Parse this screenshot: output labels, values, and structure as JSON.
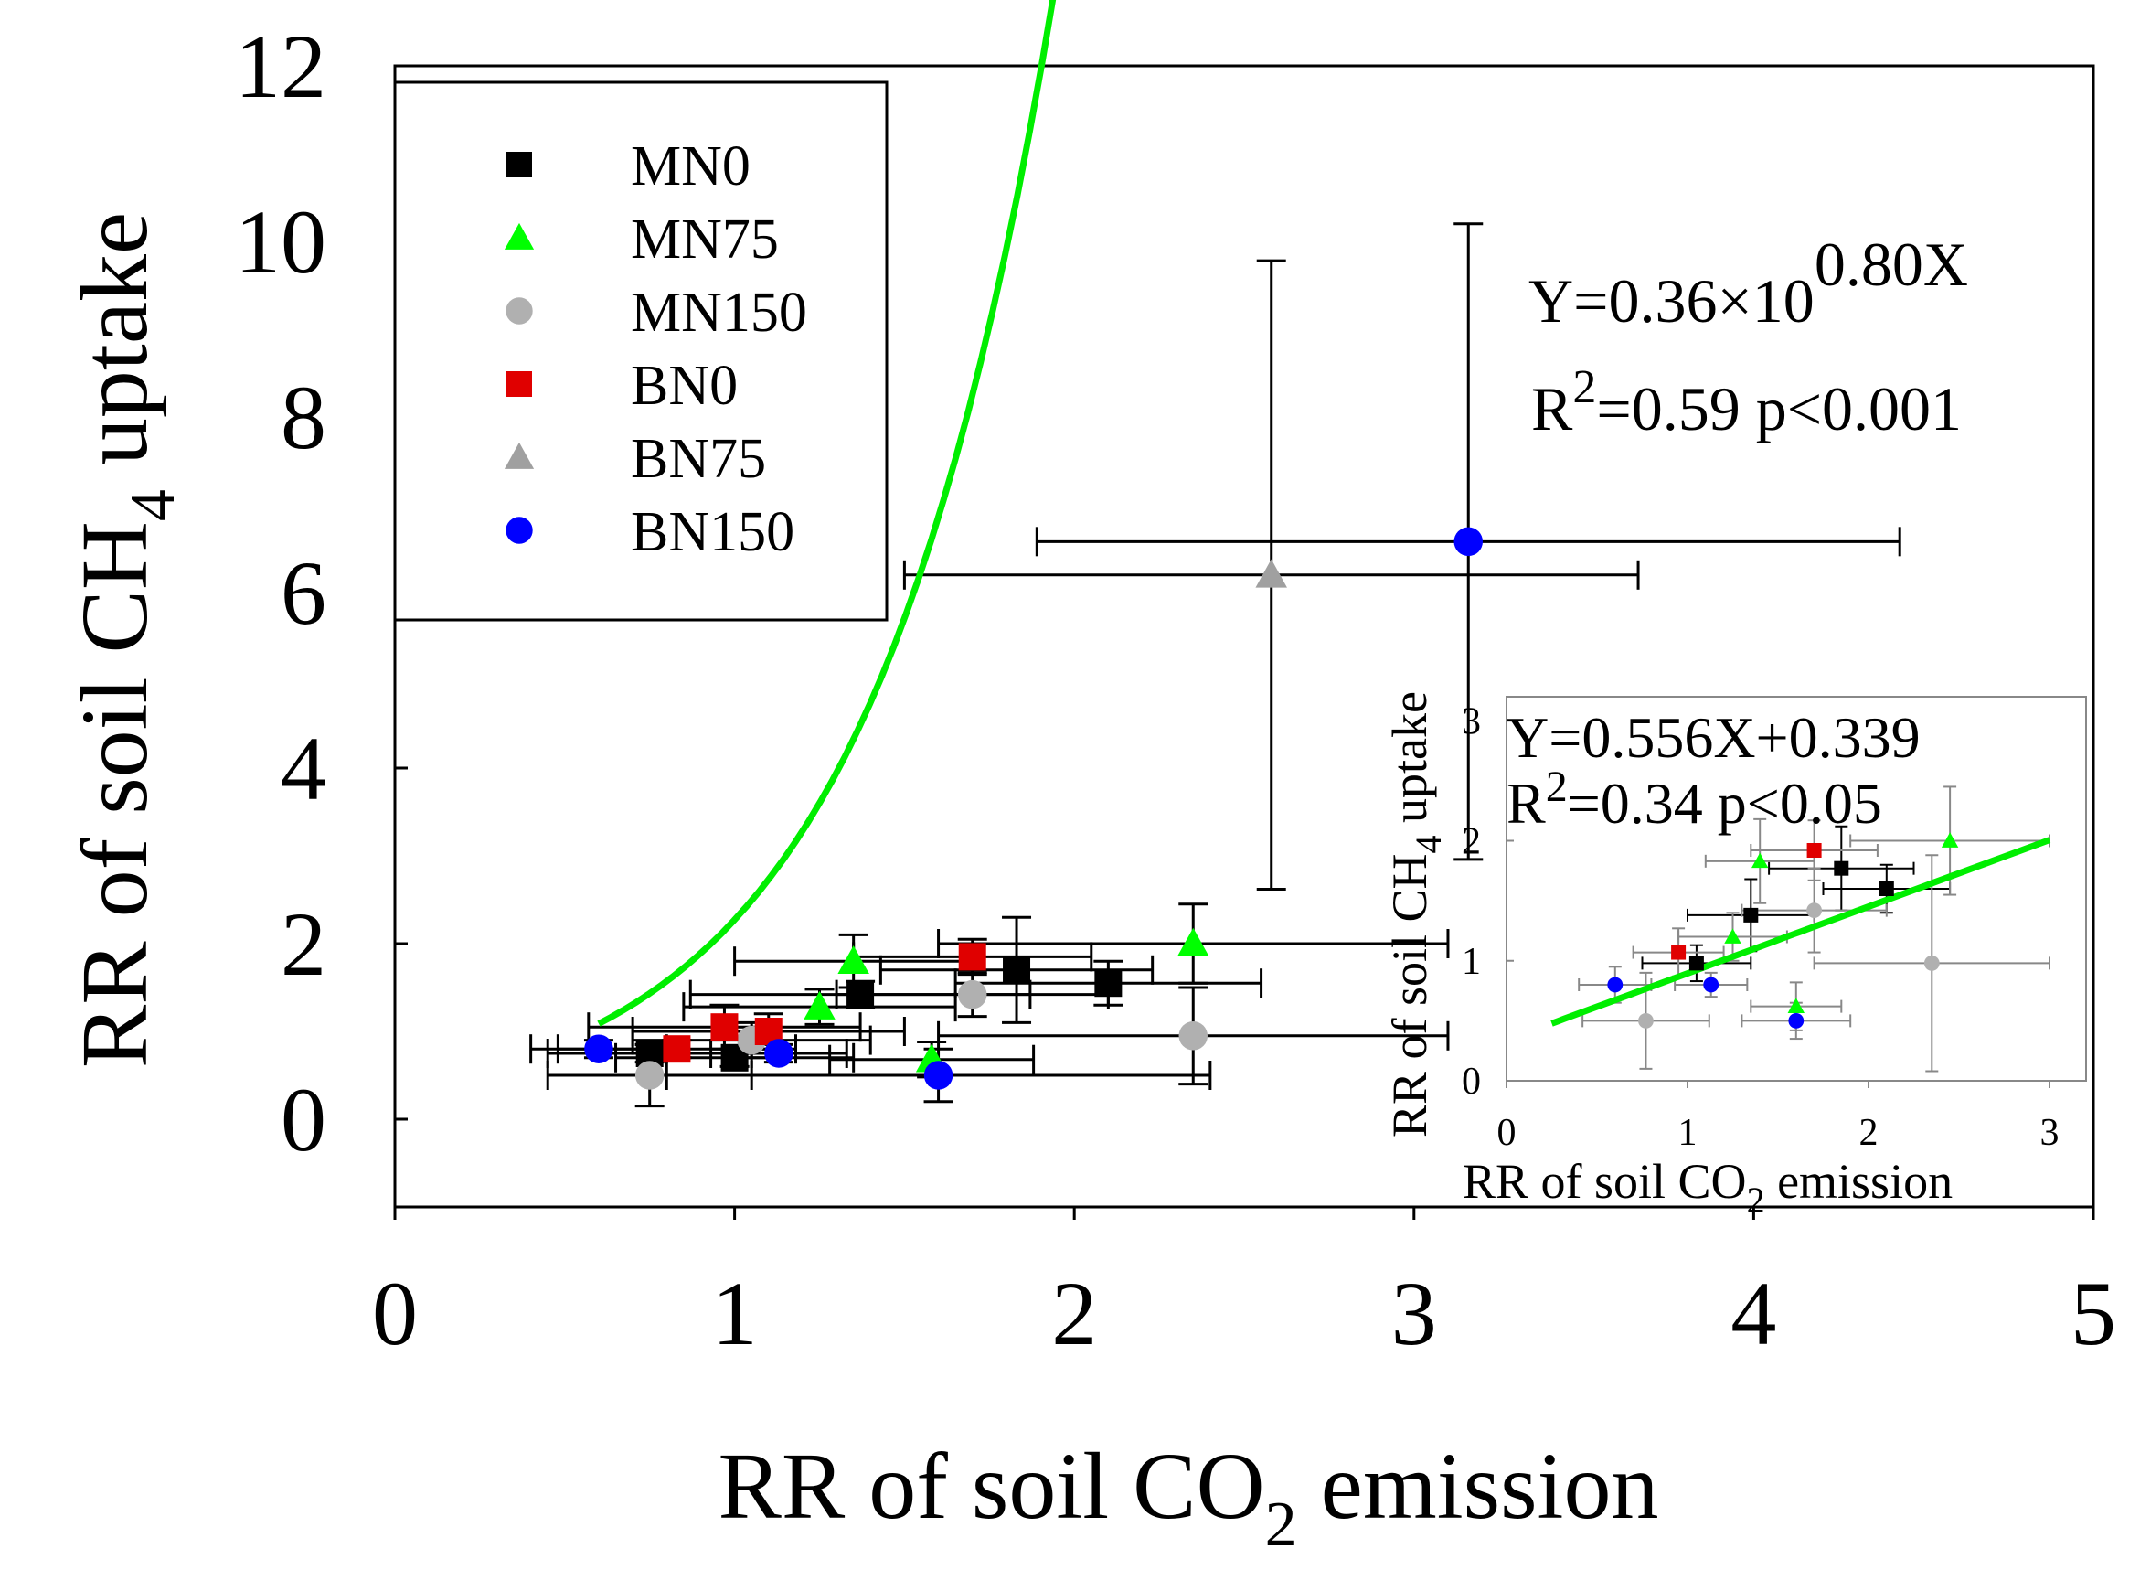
{
  "chart_data": [
    {
      "type": "scatter",
      "xlabel": "RR of  soil CO2 emission",
      "xlabel_parts": {
        "pre": "RR of  soil CO",
        "sub": "2",
        "post": " emission"
      },
      "ylabel": "RR of soil CH4 uptake",
      "ylabel_parts": {
        "pre": "RR of soil CH",
        "sub": "4",
        "post": " uptake"
      },
      "xlim": [
        0,
        5
      ],
      "ylim": [
        -1,
        12
      ],
      "xticks": [
        "0",
        "1",
        "2",
        "3",
        "4",
        "5"
      ],
      "yticks": [
        "0",
        "2",
        "4",
        "6",
        "8",
        "10",
        "12"
      ],
      "legend_position": "top-left",
      "series": [
        {
          "name": "MN0",
          "marker": "square",
          "color": "#000000",
          "points": [
            {
              "x": 0.75,
              "y": 0.75,
              "xerr": 0.3,
              "yerr": 0.1
            },
            {
              "x": 1.0,
              "y": 0.7,
              "xerr": 0.35,
              "yerr": 0.1
            },
            {
              "x": 1.37,
              "y": 1.42,
              "xerr": 0.5,
              "yerr": 0.15
            },
            {
              "x": 1.83,
              "y": 1.7,
              "xerr": 0.4,
              "yerr": 0.6
            },
            {
              "x": 2.1,
              "y": 1.55,
              "xerr": 0.45,
              "yerr": 0.25
            }
          ]
        },
        {
          "name": "MN75",
          "marker": "triangle",
          "color": "#00ff00",
          "points": [
            {
              "x": 1.25,
              "y": 1.28,
              "xerr": 0.4,
              "yerr": 0.2
            },
            {
              "x": 1.35,
              "y": 1.8,
              "xerr": 0.35,
              "yerr": 0.3
            },
            {
              "x": 2.35,
              "y": 2.0,
              "xerr": 0.75,
              "yerr": 0.45
            },
            {
              "x": 1.58,
              "y": 0.68,
              "xerr": 0.3,
              "yerr": 0.2
            }
          ]
        },
        {
          "name": "MN150",
          "marker": "circle",
          "color": "#b0b0b0",
          "points": [
            {
              "x": 0.75,
              "y": 0.5,
              "xerr": 0.3,
              "yerr": 0.35
            },
            {
              "x": 1.05,
              "y": 0.9,
              "xerr": 0.35,
              "yerr": 0.2
            },
            {
              "x": 1.7,
              "y": 1.42,
              "xerr": 0.4,
              "yerr": 0.25
            },
            {
              "x": 2.35,
              "y": 0.95,
              "xerr": 0.75,
              "yerr": 0.55
            }
          ]
        },
        {
          "name": "BN0",
          "marker": "square",
          "color": "#e00000",
          "points": [
            {
              "x": 0.83,
              "y": 0.8,
              "xerr": 0.35,
              "yerr": 0.1
            },
            {
              "x": 0.97,
              "y": 1.05,
              "xerr": 0.4,
              "yerr": 0.25
            },
            {
              "x": 1.1,
              "y": 1.0,
              "xerr": 0.4,
              "yerr": 0.2
            },
            {
              "x": 1.7,
              "y": 1.85,
              "xerr": 0.35,
              "yerr": 0.2
            }
          ]
        },
        {
          "name": "BN75",
          "marker": "triangle",
          "color": "#a0a0a0",
          "points": [
            {
              "x": 2.58,
              "y": 6.2,
              "xerr": 1.08,
              "yerr": 3.58
            }
          ]
        },
        {
          "name": "BN150",
          "marker": "circle",
          "color": "#0000ff",
          "points": [
            {
              "x": 0.6,
              "y": 0.8,
              "xerr": 0.2,
              "yerr": 0.1
            },
            {
              "x": 1.13,
              "y": 0.75,
              "xerr": 0.2,
              "yerr": 0.1
            },
            {
              "x": 1.6,
              "y": 0.5,
              "xerr": 0.8,
              "yerr": 0.3
            },
            {
              "x": 3.16,
              "y": 6.58,
              "xerr": 1.27,
              "yerr": 3.62
            }
          ]
        }
      ],
      "fit": {
        "type": "exponential",
        "a": 0.36,
        "b": 0.8,
        "x_range": [
          0.6,
          3.5
        ],
        "color": "#00ee00"
      },
      "annotations": {
        "equation_pre": "Y=0.36×10",
        "equation_sup": "0.80X",
        "r2_pre": "R",
        "r2_sup": "2",
        "r2_post": "=0.59 p<0.001"
      }
    },
    {
      "type": "scatter",
      "role": "inset",
      "xlabel": "RR of  soil CO2 emission",
      "xlabel_parts": {
        "pre": "RR of  soil CO",
        "sub": "2",
        "post": " emission"
      },
      "ylabel": "RR of soil CH4 uptake",
      "ylabel_parts": {
        "pre": "RR of soil CH",
        "sub": "4",
        "post": " uptake"
      },
      "xlim": [
        0,
        3
      ],
      "ylim": [
        0,
        3.2
      ],
      "xticks": [
        "0",
        "1",
        "2",
        "3"
      ],
      "yticks": [
        "0",
        "1",
        "2",
        "3"
      ],
      "series": [
        {
          "name": "MN0",
          "marker": "square",
          "color": "#000000",
          "points": [
            {
              "x": 1.35,
              "y": 1.38,
              "xerr": 0.35,
              "yerr": 0.3
            },
            {
              "x": 1.85,
              "y": 1.77,
              "xerr": 0.4,
              "yerr": 0.35
            },
            {
              "x": 2.1,
              "y": 1.6,
              "xerr": 0.35,
              "yerr": 0.2
            },
            {
              "x": 1.05,
              "y": 0.98,
              "xerr": 0.3,
              "yerr": 0.15
            }
          ]
        },
        {
          "name": "MN75",
          "marker": "triangle",
          "color": "#00ff00",
          "points": [
            {
              "x": 1.4,
              "y": 1.83,
              "xerr": 0.3,
              "yerr": 0.35
            },
            {
              "x": 1.25,
              "y": 1.2,
              "xerr": 0.3,
              "yerr": 0.2
            },
            {
              "x": 1.6,
              "y": 0.62,
              "xerr": 0.25,
              "yerr": 0.2
            },
            {
              "x": 2.45,
              "y": 2.0,
              "xerr": 0.55,
              "yerr": 0.45
            }
          ]
        },
        {
          "name": "MN150",
          "marker": "circle",
          "color": "#b0b0b0",
          "points": [
            {
              "x": 0.77,
              "y": 0.5,
              "xerr": 0.35,
              "yerr": 0.4
            },
            {
              "x": 1.7,
              "y": 1.42,
              "xerr": 0.4,
              "yerr": 0.35
            },
            {
              "x": 2.35,
              "y": 0.98,
              "xerr": 0.65,
              "yerr": 0.9
            }
          ]
        },
        {
          "name": "BN0",
          "marker": "square",
          "color": "#e00000",
          "points": [
            {
              "x": 0.95,
              "y": 1.07,
              "xerr": 0.25,
              "yerr": 0.2
            },
            {
              "x": 1.7,
              "y": 1.92,
              "xerr": 0.35,
              "yerr": 0.25
            }
          ]
        },
        {
          "name": "BN150",
          "marker": "circle",
          "color": "#0000ff",
          "points": [
            {
              "x": 0.6,
              "y": 0.8,
              "xerr": 0.2,
              "yerr": 0.15
            },
            {
              "x": 1.13,
              "y": 0.8,
              "xerr": 0.2,
              "yerr": 0.1
            },
            {
              "x": 1.6,
              "y": 0.5,
              "xerr": 0.3,
              "yerr": 0.15
            }
          ]
        }
      ],
      "fit": {
        "type": "linear",
        "slope": 0.556,
        "intercept": 0.339,
        "x_range": [
          0.25,
          3.0
        ],
        "color": "#00ee00"
      },
      "annotations": {
        "equation": "Y=0.556X+0.339",
        "r2_pre": "R",
        "r2_sup": "2",
        "r2_post": "=0.34 p<0.05"
      }
    }
  ]
}
